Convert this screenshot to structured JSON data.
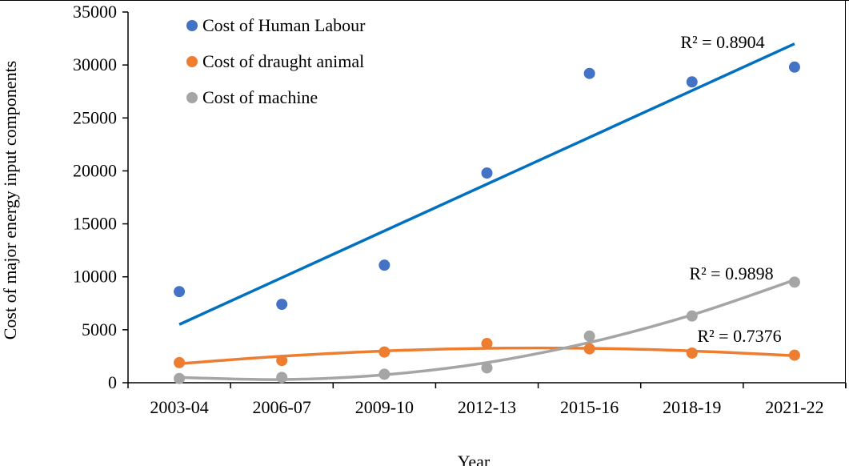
{
  "chart_data": {
    "type": "scatter",
    "xlabel": "Year",
    "ylabel": "Cost of major energy input components",
    "categories": [
      "2003-04",
      "2006-07",
      "2009-10",
      "2012-13",
      "2015-16",
      "2018-19",
      "2021-22"
    ],
    "ylim": [
      0,
      35000
    ],
    "yticks": [
      "0",
      "5000",
      "10000",
      "15000",
      "20000",
      "25000",
      "30000",
      "35000"
    ],
    "grid": false,
    "legend_position": "top-left",
    "series": [
      {
        "name": "Cost of Human Labour",
        "color": "#4472C4",
        "values": [
          8600,
          7400,
          11100,
          19800,
          29200,
          28400,
          29800
        ],
        "trendline": {
          "type": "linear",
          "color": "#0070C0",
          "start": 5500,
          "end": 32000,
          "r2_label": "R² = 0.8904"
        }
      },
      {
        "name": "Cost of draught animal",
        "color": "#ED7D31",
        "values": [
          1900,
          2100,
          2900,
          3700,
          3200,
          2800,
          2600
        ],
        "trendline": {
          "type": "poly2",
          "color": "#ED7D31",
          "points": [
            1800,
            2500,
            3000,
            3250,
            3250,
            3000,
            2550
          ],
          "r2_label": "R² = 0.7376"
        }
      },
      {
        "name": "Cost of machine",
        "color": "#A5A5A5",
        "values": [
          400,
          500,
          800,
          1400,
          4400,
          6300,
          9500
        ],
        "trendline": {
          "type": "poly2",
          "color": "#A5A5A5",
          "points": [
            500,
            300,
            750,
            1900,
            3800,
            6400,
            9700
          ],
          "r2_label": "R² = 0.9898"
        }
      }
    ]
  }
}
